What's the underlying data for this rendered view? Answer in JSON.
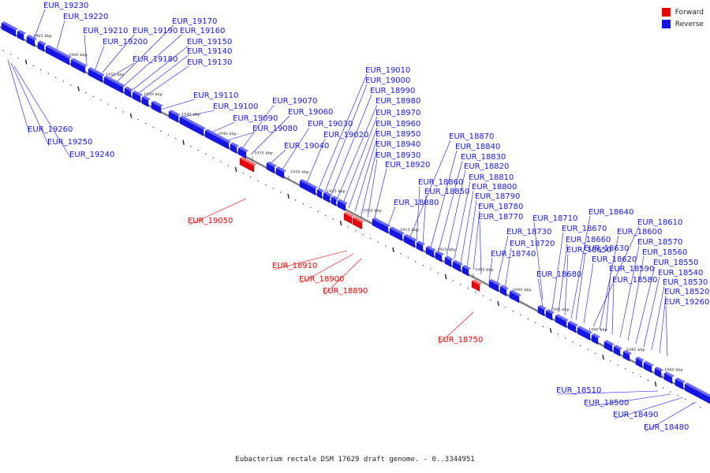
{
  "legend": {
    "items": [
      {
        "label": "Forward",
        "color": "#ee0000"
      },
      {
        "label": "Reverse",
        "color": "#1515e8"
      }
    ]
  },
  "caption": "Eubacterium rectale DSM 17629 draft genome. - 0..3344951",
  "colors": {
    "forward": "#ee0000",
    "reverse": "#1515e8",
    "axis": "#777777"
  },
  "ticks": [
    "1965 kbp",
    "1960 kbp",
    "1955 kbp",
    "1950 kbp",
    "1945 kbp",
    "1940 kbp",
    "1935 kbp",
    "1930 kbp",
    "1925 kbp",
    "1920 kbp",
    "1915 kbp",
    "1910 kbp",
    "1905 kbp",
    "1900 kbp",
    "1895 kbp",
    "1890 kbp",
    "1885 kbp",
    "1880 kbp"
  ],
  "reverse_genes": [
    "EUR_19230",
    "EUR_19220",
    "EUR_19210",
    "EUR_19200",
    "EUR_19190",
    "EUR_19180",
    "EUR_19170",
    "EUR_19160",
    "EUR_19150",
    "EUR_19140",
    "EUR_19130",
    "EUR_19110",
    "EUR_19100",
    "EUR_19090",
    "EUR_19080",
    "EUR_19070",
    "EUR_19060",
    "EUR_19040",
    "EUR_19030",
    "EUR_19020",
    "EUR_19010",
    "EUR_19000",
    "EUR_18990",
    "EUR_18980",
    "EUR_18970",
    "EUR_18960",
    "EUR_18950",
    "EUR_18940",
    "EUR_18930",
    "EUR_18920",
    "EUR_18880",
    "EUR_18870",
    "EUR_18860",
    "EUR_18850",
    "EUR_18840",
    "EUR_18830",
    "EUR_18820",
    "EUR_18810",
    "EUR_18800",
    "EUR_18790",
    "EUR_18780",
    "EUR_18770",
    "EUR_18740",
    "EUR_18730",
    "EUR_18720",
    "EUR_18710",
    "EUR_18680",
    "EUR_18670",
    "EUR_18660",
    "EUR_18650",
    "EUR_18640",
    "EUR_18630",
    "EUR_18620",
    "EUR_18610",
    "EUR_18600",
    "EUR_18590",
    "EUR_18580",
    "EUR_18570",
    "EUR_18560",
    "EUR_18550",
    "EUR_18540",
    "EUR_18530",
    "EUR_18520",
    "EUR_19260",
    "EUR_19250",
    "EUR_19240",
    "EUR_18510",
    "EUR_18500",
    "EUR_18490",
    "EUR_18480"
  ],
  "forward_genes": [
    "EUR_19050",
    "EUR_18910",
    "EUR_18900",
    "EUR_18890",
    "EUR_18750"
  ]
}
